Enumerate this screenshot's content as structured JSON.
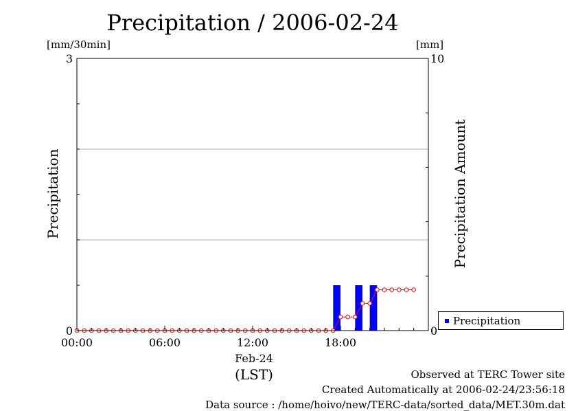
{
  "chart_data": {
    "type": "bar",
    "title": "Precipitation / 2006-02-24",
    "left_axis": {
      "label": "Precipitation",
      "unit": "[mm/30min]",
      "ylim": [
        0,
        3
      ],
      "ticks": [
        {
          "value": 0,
          "label": "0"
        },
        {
          "value": 3,
          "label": "3"
        }
      ],
      "gridlines": [
        1,
        2
      ]
    },
    "right_axis": {
      "label": "Precipitation Amount",
      "unit": "[mm]",
      "ylim": [
        0,
        10
      ],
      "ticks": [
        {
          "value": 0,
          "label": "0"
        },
        {
          "value": 10,
          "label": "10"
        }
      ]
    },
    "x_axis": {
      "range_hours": [
        0,
        24
      ],
      "ticks": [
        {
          "value": 0,
          "label": "00:00"
        },
        {
          "value": 6,
          "label": "06:00"
        },
        {
          "value": 12,
          "label": "12:00"
        },
        {
          "value": 18,
          "label": "18:00"
        }
      ],
      "date_label": "Feb-24",
      "time_zone_label": "(LST)"
    },
    "legend": {
      "position": "bottom-right",
      "entries": [
        {
          "name": "Precipitation",
          "color": "#0000ff"
        }
      ]
    },
    "series": [
      {
        "name": "Precipitation",
        "kind": "bar",
        "color": "#0000ff",
        "x_hours": [
          17.5,
          19.0,
          20.0
        ],
        "values": [
          0.5,
          0.5,
          0.5
        ]
      },
      {
        "kind": "line",
        "axis": "right",
        "color": "#ff0000",
        "x_hours": [
          0,
          0.5,
          1,
          1.5,
          2,
          2.5,
          3,
          3.5,
          4,
          4.5,
          5,
          5.5,
          6,
          6.5,
          7,
          7.5,
          8,
          8.5,
          9,
          9.5,
          10,
          10.5,
          11,
          11.5,
          12,
          12.5,
          13,
          13.5,
          14,
          14.5,
          15,
          15.5,
          16,
          16.5,
          17,
          17.5,
          18,
          18.5,
          19,
          19.5,
          20,
          20.5,
          21,
          21.5,
          22,
          22.5,
          23
        ],
        "values": [
          0,
          0,
          0,
          0,
          0,
          0,
          0,
          0,
          0,
          0,
          0,
          0,
          0,
          0,
          0,
          0,
          0,
          0,
          0,
          0,
          0,
          0,
          0,
          0,
          0,
          0,
          0,
          0,
          0,
          0,
          0,
          0,
          0,
          0,
          0,
          0,
          0.5,
          0.5,
          0.5,
          1.0,
          1.0,
          1.5,
          1.5,
          1.5,
          1.5,
          1.5,
          1.5
        ]
      }
    ]
  },
  "footer": {
    "observed": "Observed at TERC Tower site",
    "created": "Created Automatically at 2006-02-24/23:56:18",
    "source": "Data source : /home/hoivo/new/TERC-data/sorted_data/MET.30m.dat"
  }
}
